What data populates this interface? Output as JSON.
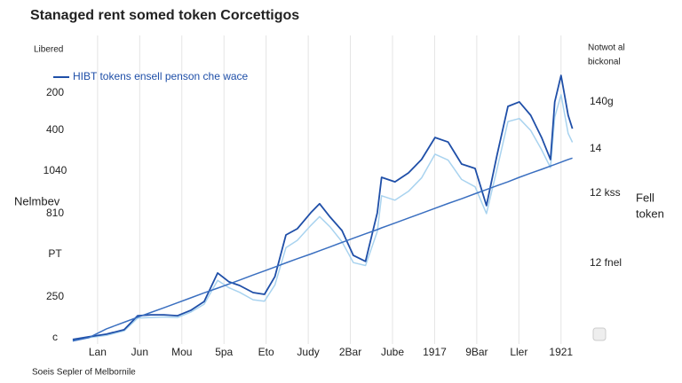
{
  "chart_data": {
    "type": "line",
    "title": "Stanaged rent somed token Corcettigos",
    "y_caption": "Libered",
    "y_axis_title": "Nelmbev",
    "right_header": [
      "Notwot al",
      "bickonal"
    ],
    "right_title": [
      "Fell",
      "token"
    ],
    "source": "Soeis Sepler of Melbornile",
    "y_labels": [
      "200",
      "400",
      "1040",
      "810",
      "PT",
      "250",
      "c"
    ],
    "right_labels": [
      "140g",
      "14",
      "12 kss",
      "12 fnel"
    ],
    "xlim": [
      -0.63,
      11.3
    ],
    "xticks": [
      {
        "value": 0,
        "label": "Lan"
      },
      {
        "value": 1,
        "label": "Jun"
      },
      {
        "value": 2,
        "label": "Mou"
      },
      {
        "value": 3,
        "label": "5pa"
      },
      {
        "value": 4,
        "label": "Eto"
      },
      {
        "value": 5,
        "label": "Judy"
      },
      {
        "value": 6,
        "label": "2Bar"
      },
      {
        "value": 7,
        "label": "Jube"
      },
      {
        "value": 8,
        "label": "1917"
      },
      {
        "value": 9,
        "label": "9Bar"
      },
      {
        "value": 10,
        "label": "Ller"
      },
      {
        "value": 11,
        "label": "1921"
      }
    ],
    "ylim": [
      0,
      100
    ],
    "grid": true,
    "x": [
      -0.59,
      -0.21,
      0.21,
      0.63,
      0.95,
      1.26,
      1.58,
      1.9,
      2.21,
      2.53,
      2.85,
      3.12,
      3.37,
      3.69,
      3.96,
      4.21,
      4.47,
      4.74,
      5.06,
      5.27,
      5.52,
      5.8,
      6.07,
      6.36,
      6.64,
      6.74,
      7.06,
      7.38,
      7.69,
      8.01,
      8.32,
      8.64,
      8.96,
      9.23,
      9.48,
      9.74,
      10.01,
      10.28,
      10.54,
      10.75,
      10.85,
      11.0,
      11.17,
      11.27
    ],
    "series": [
      {
        "color": "#a9d3ef",
        "values": [
          3.3,
          4.2,
          5.0,
          6.5,
          10.8,
          11.0,
          11.2,
          11.0,
          12.8,
          15.5,
          23.5,
          21.0,
          19.5,
          17.0,
          16.5,
          22.0,
          34.5,
          37.0,
          42.0,
          45.0,
          41.5,
          36.5,
          29.5,
          28.5,
          40.0,
          52.0,
          50.5,
          53.5,
          58.0,
          66.0,
          64.0,
          57.5,
          55.0,
          46.0,
          61.0,
          77.0,
          78.0,
          74.0,
          67.5,
          61.5,
          78.5,
          86.0,
          73.0,
          70.0
        ]
      },
      {
        "name": "HIBT tokens ensell penson che wace",
        "color": "#1f4fa8",
        "values": [
          3.6,
          4.5,
          5.4,
          6.9,
          11.6,
          11.9,
          11.9,
          11.6,
          13.4,
          16.4,
          26.0,
          23.0,
          21.8,
          19.4,
          18.8,
          24.8,
          38.8,
          40.9,
          46.3,
          49.3,
          44.8,
          40.3,
          31.9,
          29.9,
          46.3,
          58.2,
          56.7,
          59.7,
          64.2,
          71.6,
          70.1,
          62.7,
          61.2,
          48.7,
          65.7,
          82.1,
          83.6,
          79.1,
          71.6,
          64.2,
          83.6,
          92.5,
          79.1,
          74.6
        ]
      },
      {
        "color": "#3a6fc0",
        "values": [
          3.1,
          4.2,
          7.2,
          9.4,
          11.1,
          12.7,
          14.3,
          16.0,
          17.6,
          19.3,
          20.9,
          22.3,
          23.6,
          25.3,
          26.7,
          28.0,
          29.4,
          30.8,
          32.4,
          33.5,
          34.8,
          36.3,
          37.7,
          39.2,
          40.6,
          41.2,
          42.8,
          44.5,
          46.1,
          47.8,
          49.4,
          51.0,
          52.7,
          54.1,
          55.4,
          56.7,
          58.2,
          59.6,
          60.9,
          62.0,
          62.5,
          63.3,
          64.2,
          64.7
        ]
      }
    ]
  }
}
